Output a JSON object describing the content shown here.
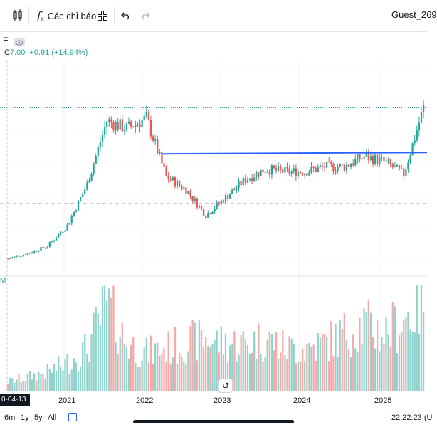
{
  "toolbar": {
    "indicators_label": "Các chỉ báo",
    "user": "Guest_269"
  },
  "legend": {
    "symbol_tail": "E",
    "close_label": "C",
    "close_value": "7.00",
    "change": "+0.91 (+14.94%)"
  },
  "volume_label_tail": "M",
  "date_tag": "0-04-13",
  "x_axis": [
    "2021",
    "2022",
    "2023",
    "2024",
    "2025"
  ],
  "ranges": [
    "6m",
    "1y",
    "5y",
    "All"
  ],
  "clock": "22:22:23 (U",
  "colors": {
    "up": "#26a69a",
    "down": "#ef5350",
    "trendline": "#2962ff"
  },
  "chart_data": {
    "type": "candlestick",
    "x": [
      "2020-04",
      "2020-07",
      "2020-10",
      "2021-01",
      "2021-04",
      "2021-07",
      "2021-10",
      "2022-01",
      "2022-04",
      "2022-07",
      "2022-10",
      "2023-01",
      "2023-04",
      "2023-07",
      "2023-10",
      "2024-01",
      "2024-04",
      "2024-07",
      "2024-10",
      "2025-01",
      "2025-04",
      "2025-06"
    ],
    "close": [
      1.1,
      1.3,
      1.6,
      2.4,
      4.0,
      6.5,
      6.2,
      6.6,
      4.3,
      3.8,
      2.8,
      3.5,
      4.2,
      4.6,
      4.5,
      4.5,
      4.7,
      4.7,
      5.1,
      4.9,
      4.4,
      7.0
    ],
    "volume_relative": [
      0.1,
      0.15,
      0.2,
      0.3,
      0.45,
      0.9,
      0.5,
      0.4,
      0.45,
      0.5,
      0.55,
      0.5,
      0.5,
      0.55,
      0.45,
      0.45,
      0.5,
      0.6,
      0.7,
      0.6,
      0.75,
      0.95
    ],
    "trendline_value": 5.2
  }
}
